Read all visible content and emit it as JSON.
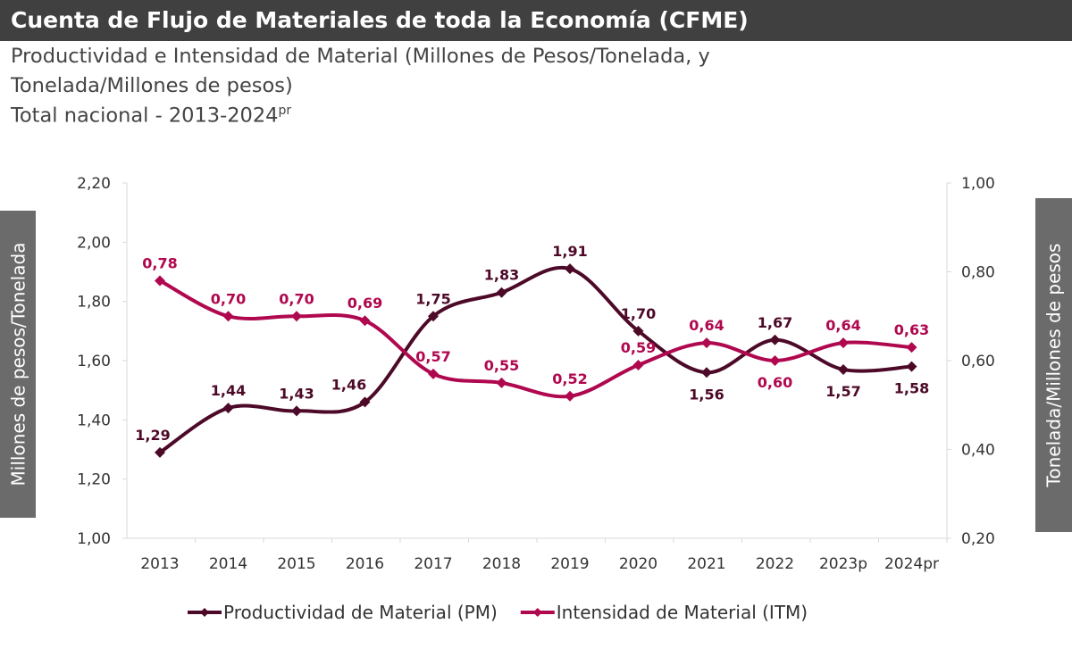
{
  "header": {
    "title": "Cuenta de Flujo de Materiales de toda la Economía (CFME)",
    "subtitle_line1": "Productividad e Intensidad de Material (Millones de Pesos/Tonelada, y",
    "subtitle_line2": "Tonelada/Millones de pesos)",
    "subtitle_line3": "Total nacional - 2013-2024",
    "subtitle_sup": "pr"
  },
  "colors": {
    "pm": "#4d0a28",
    "itm": "#b0084f",
    "axis": "#d9d9d9",
    "sidebox": "#6b6b6b",
    "titlebar": "#404040"
  },
  "chart_data": {
    "type": "line",
    "categories": [
      "2013",
      "2014",
      "2015",
      "2016",
      "2017",
      "2018",
      "2019",
      "2020",
      "2021",
      "2022",
      "2023p",
      "2024pr"
    ],
    "ylabel": "Millones de pesos/Tonelada",
    "y2label": "Tonelada/Millones de pesos",
    "ylim": [
      1.0,
      2.2
    ],
    "y2lim": [
      0.2,
      1.0
    ],
    "yticks": [
      "1,00",
      "1,20",
      "1,40",
      "1,60",
      "1,80",
      "2,00",
      "2,20"
    ],
    "y2ticks": [
      "0,20",
      "0,40",
      "0,60",
      "0,80",
      "1,00"
    ],
    "grid": false,
    "legend": "bottom",
    "series": [
      {
        "name": "Productividad de Material (PM)",
        "axis": "left",
        "values": [
          1.29,
          1.44,
          1.43,
          1.46,
          1.75,
          1.83,
          1.91,
          1.7,
          1.56,
          1.67,
          1.57,
          1.58
        ],
        "labels": [
          "1,29",
          "1,44",
          "1,43",
          "1,46",
          "1,75",
          "1,83",
          "1,91",
          "1,70",
          "1,56",
          "1,67",
          "1,57",
          "1,58"
        ]
      },
      {
        "name": "Intensidad de Material (ITM)",
        "axis": "right",
        "values": [
          0.78,
          0.7,
          0.7,
          0.69,
          0.57,
          0.55,
          0.52,
          0.59,
          0.64,
          0.6,
          0.64,
          0.63
        ],
        "labels": [
          "0,78",
          "0,70",
          "0,70",
          "0,69",
          "0,57",
          "0,55",
          "0,52",
          "0,59",
          "0,64",
          "0,60",
          "0,64",
          "0,63"
        ]
      }
    ]
  }
}
